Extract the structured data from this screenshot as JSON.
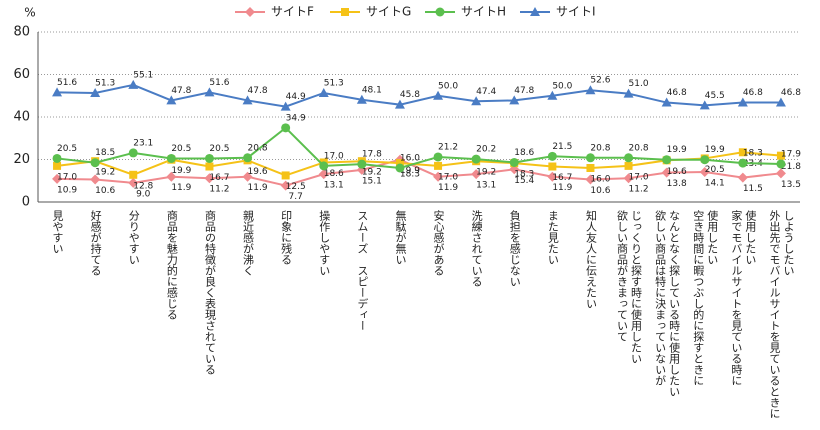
{
  "chart_data": {
    "type": "line",
    "y_label": "%",
    "categories": [
      [
        "見やすい"
      ],
      [
        "好感が持てる"
      ],
      [
        "分りやすい"
      ],
      [
        "商品を魅力的に感じる"
      ],
      [
        "商品の特徴が良く表現されている"
      ],
      [
        "親近感が沸く"
      ],
      [
        "印象に残る"
      ],
      [
        "操作しやすい"
      ],
      [
        "スムーズ　スピーディー"
      ],
      [
        "無駄が無い"
      ],
      [
        "安心感がある"
      ],
      [
        "洗練されている"
      ],
      [
        "負担を感じない"
      ],
      [
        "また見たい"
      ],
      [
        "知人友人に伝えたい"
      ],
      [
        "欲しい商品がきまっていて",
        "じっくりと探す時に使用したい"
      ],
      [
        "欲しい商品は特に決まっていないが",
        "なんとなく探している時に使用したい"
      ],
      [
        "空き時間に暇つぶし的に探すときに",
        "使用したい"
      ],
      [
        "家でモバイルサイトを見ている時に",
        "使用したい"
      ],
      [
        "外出先でモバイルサイトを見ているときに",
        "しようしたい"
      ]
    ],
    "series": [
      {
        "name": "サイトF",
        "color": "#f08a8e",
        "marker": "diamond",
        "values": [
          10.9,
          10.6,
          9.0,
          11.9,
          11.2,
          11.9,
          7.7,
          13.1,
          15.1,
          19.9,
          11.9,
          13.1,
          15.4,
          11.9,
          10.6,
          11.2,
          13.8,
          14.1,
          11.5,
          13.5
        ],
        "value_labels": [
          "10.9",
          "10.6",
          "9.0",
          "11.9",
          "11.2",
          "11.9",
          "7.7",
          "13.1",
          "15.1",
          "19.9",
          "11.9",
          "13.1",
          "15.4",
          "11.9",
          "10.6",
          "11.2",
          "13.8",
          "14.1",
          "11.5",
          "13.5"
        ]
      },
      {
        "name": "サイトG",
        "color": "#f5c217",
        "marker": "square",
        "values": [
          17.0,
          19.2,
          12.8,
          19.9,
          16.7,
          19.6,
          12.5,
          18.6,
          19.2,
          18.3,
          17.0,
          19.2,
          18.3,
          16.7,
          16.0,
          17.0,
          19.6,
          20.5,
          23.4,
          21.8
        ],
        "value_labels": [
          "17.0",
          "19.2",
          "12.8",
          "19.9",
          "16.7",
          "19.6",
          "12.5",
          "18.6",
          "19.2",
          "18.3",
          "17.0",
          "19.2",
          "18.3",
          "16.7",
          "16.0",
          "17.0",
          "19.6",
          "20.5",
          "23.4",
          "21.8"
        ]
      },
      {
        "name": "サイトH",
        "color": "#5bbf4e",
        "marker": "circle",
        "values": [
          20.5,
          18.5,
          23.1,
          20.5,
          20.5,
          20.8,
          34.9,
          17.0,
          17.8,
          16.0,
          21.2,
          20.2,
          18.6,
          21.5,
          20.8,
          20.8,
          19.9,
          19.9,
          18.3,
          17.9
        ],
        "value_labels": [
          "20.5",
          "18.5",
          "23.1",
          "20.5",
          "20.5",
          "20.8",
          "34.9",
          "17.0",
          "17.8",
          "16.0",
          "21.2",
          "20.2",
          "18.6",
          "21.5",
          "20.8",
          "20.8",
          "19.9",
          "19.9",
          "18.3",
          "17.9"
        ]
      },
      {
        "name": "サイトI",
        "color": "#4a7cc4",
        "marker": "triangle",
        "values": [
          51.6,
          51.3,
          55.1,
          47.8,
          51.6,
          47.8,
          44.9,
          51.3,
          48.1,
          45.8,
          50.0,
          47.4,
          47.8,
          50.0,
          52.6,
          51.0,
          46.8,
          45.5,
          46.8,
          46.8
        ],
        "value_labels": [
          "51.6",
          "51.3",
          "55.1",
          "47.8",
          "51.6",
          "47.8",
          "44.9",
          "51.3",
          "48.1",
          "45.8",
          "50.0",
          "47.4",
          "47.8",
          "50.0",
          "52.6",
          "51.0",
          "46.8",
          "45.5",
          "46.8",
          "46.8"
        ]
      }
    ],
    "ylim": [
      0,
      80
    ],
    "yticks": [
      0,
      20,
      40,
      60,
      80
    ],
    "grid": true
  }
}
